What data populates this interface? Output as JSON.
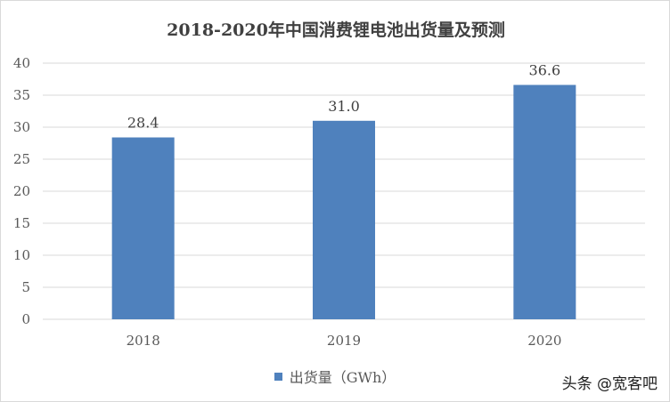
{
  "chart_data": {
    "type": "bar",
    "title": "2018-2020年中国消费锂电池出货量及预测",
    "categories": [
      "2018",
      "2019",
      "2020"
    ],
    "series": [
      {
        "name": "出货量（GWh）",
        "values": [
          28.4,
          31.0,
          36.6
        ],
        "labels": [
          "28.4",
          "31.0",
          "36.6"
        ]
      }
    ],
    "ylim": [
      0,
      40
    ],
    "yticks": [
      0,
      5,
      10,
      15,
      20,
      25,
      30,
      35,
      40
    ],
    "grid": true,
    "legend_position": "bottom-center",
    "bar_color": "#4f81bd",
    "grid_color": "#d9d9d9"
  },
  "watermark": "头条 @宽客吧"
}
